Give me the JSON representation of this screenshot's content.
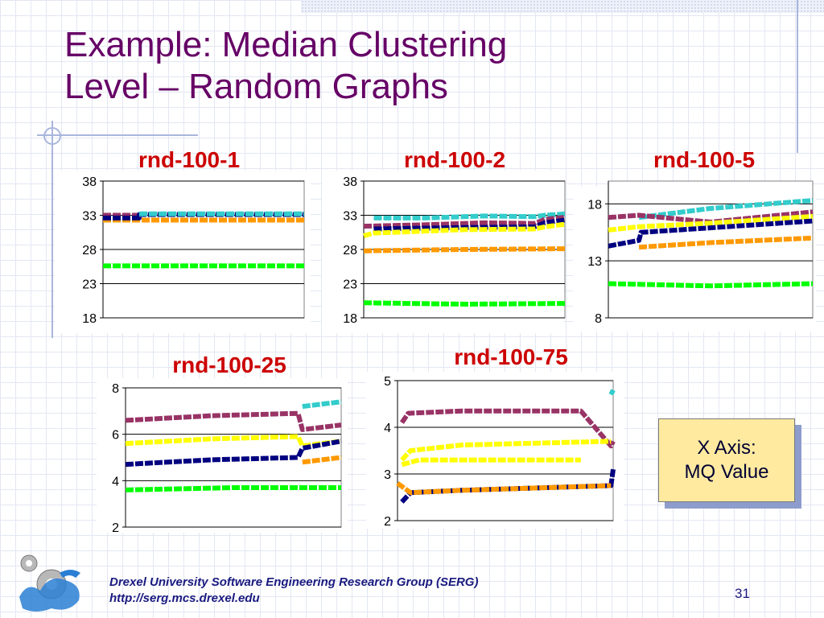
{
  "slide": {
    "title_line1": "Example:  Median Clustering",
    "title_line2": "Level – Random Graphs",
    "callout_line1": "X Axis:",
    "callout_line2": "MQ Value",
    "footer_line1": "Drexel University Software Engineering Research Group (SERG)",
    "footer_line2": "http://serg.mcs.drexel.edu",
    "page_number": "31",
    "colors": {
      "title": "#660066",
      "chart_title": "#cc0000",
      "footer": "#1a1a80",
      "callout_bg": "#ffeaa0",
      "callout_shadow": "#8e9ccc"
    }
  },
  "chart_data": [
    {
      "type": "line",
      "title": "rnd-100-1",
      "ylim": [
        18,
        38
      ],
      "yticks": [
        18,
        23,
        28,
        33,
        38
      ],
      "grid": true,
      "series": [
        {
          "color": "#ff9900",
          "points": [
            [
              0,
              32.3
            ],
            [
              1,
              32.3
            ]
          ]
        },
        {
          "color": "#993366",
          "points": [
            [
              0,
              33.0
            ],
            [
              0.18,
              33.0
            ]
          ]
        },
        {
          "color": "#000080",
          "points": [
            [
              0,
              32.6
            ],
            [
              0.18,
              32.6
            ],
            [
              0.18,
              33.1
            ],
            [
              1,
              33.1
            ]
          ]
        },
        {
          "color": "#33cccc",
          "points": [
            [
              0.18,
              33.2
            ],
            [
              1,
              33.2
            ]
          ]
        },
        {
          "color": "#00ff00",
          "points": [
            [
              0,
              25.6
            ],
            [
              1,
              25.6
            ]
          ]
        }
      ]
    },
    {
      "type": "line",
      "title": "rnd-100-2",
      "ylim": [
        18,
        38
      ],
      "yticks": [
        18,
        23,
        28,
        33,
        38
      ],
      "grid": true,
      "series": [
        {
          "color": "#33cccc",
          "points": [
            [
              0.05,
              32.6
            ],
            [
              0.3,
              32.6
            ],
            [
              0.6,
              32.9
            ],
            [
              0.85,
              32.8
            ],
            [
              0.9,
              33.0
            ],
            [
              1,
              33.2
            ]
          ]
        },
        {
          "color": "#993366",
          "points": [
            [
              0,
              31.4
            ],
            [
              0.3,
              31.6
            ],
            [
              0.6,
              31.9
            ],
            [
              0.85,
              31.8
            ],
            [
              0.9,
              32.4
            ],
            [
              1,
              32.7
            ]
          ]
        },
        {
          "color": "#000080",
          "points": [
            [
              0.05,
              31.0
            ],
            [
              0.5,
              31.2
            ],
            [
              0.85,
              31.3
            ],
            [
              0.9,
              31.9
            ],
            [
              1,
              32.3
            ]
          ]
        },
        {
          "color": "#ffff00",
          "points": [
            [
              0,
              30.0
            ],
            [
              0.05,
              30.4
            ],
            [
              0.5,
              30.9
            ],
            [
              0.85,
              31.0
            ],
            [
              0.9,
              31.3
            ],
            [
              1,
              31.7
            ]
          ]
        },
        {
          "color": "#ff9900",
          "points": [
            [
              0,
              27.8
            ],
            [
              0.5,
              28.0
            ],
            [
              1,
              28.1
            ]
          ]
        },
        {
          "color": "#00ff00",
          "points": [
            [
              0,
              20.2
            ],
            [
              0.5,
              20.0
            ],
            [
              1,
              20.1
            ]
          ]
        }
      ]
    },
    {
      "type": "line",
      "title": "rnd-100-5",
      "ylim": [
        8,
        20
      ],
      "yticks": [
        8,
        13,
        18
      ],
      "grid": true,
      "series": [
        {
          "color": "#33cccc",
          "points": [
            [
              0.15,
              16.8
            ],
            [
              0.5,
              17.6
            ],
            [
              1,
              18.3
            ]
          ]
        },
        {
          "color": "#993366",
          "points": [
            [
              0,
              16.8
            ],
            [
              0.15,
              17.0
            ],
            [
              0.5,
              16.4
            ],
            [
              1,
              17.3
            ]
          ]
        },
        {
          "color": "#ffff00",
          "points": [
            [
              0,
              15.7
            ],
            [
              0.15,
              16.0
            ],
            [
              0.5,
              16.3
            ],
            [
              1,
              16.9
            ]
          ]
        },
        {
          "color": "#000080",
          "points": [
            [
              0,
              14.3
            ],
            [
              0.15,
              14.8
            ],
            [
              0.16,
              15.5
            ],
            [
              0.5,
              15.9
            ],
            [
              1,
              16.5
            ]
          ]
        },
        {
          "color": "#ff9900",
          "points": [
            [
              0.15,
              14.2
            ],
            [
              0.5,
              14.6
            ],
            [
              1,
              15.0
            ]
          ]
        },
        {
          "color": "#00ff00",
          "points": [
            [
              0,
              11.0
            ],
            [
              0.5,
              10.8
            ],
            [
              1,
              11.0
            ]
          ]
        }
      ]
    },
    {
      "type": "line",
      "title": "rnd-100-25",
      "ylim": [
        2,
        8
      ],
      "yticks": [
        2,
        4,
        6,
        8
      ],
      "grid": true,
      "series": [
        {
          "color": "#33cccc",
          "points": [
            [
              0.82,
              7.2
            ],
            [
              1,
              7.4
            ]
          ]
        },
        {
          "color": "#993366",
          "points": [
            [
              0,
              6.6
            ],
            [
              0.4,
              6.8
            ],
            [
              0.8,
              6.9
            ],
            [
              0.82,
              6.2
            ],
            [
              1,
              6.4
            ]
          ]
        },
        {
          "color": "#ffff00",
          "points": [
            [
              0,
              5.6
            ],
            [
              0.4,
              5.8
            ],
            [
              0.8,
              5.9
            ],
            [
              0.82,
              5.5
            ],
            [
              1,
              5.7
            ]
          ]
        },
        {
          "color": "#000080",
          "points": [
            [
              0,
              4.7
            ],
            [
              0.4,
              4.9
            ],
            [
              0.8,
              5.0
            ],
            [
              0.82,
              5.4
            ],
            [
              1,
              5.7
            ]
          ]
        },
        {
          "color": "#ff9900",
          "points": [
            [
              0.82,
              4.8
            ],
            [
              1,
              5.0
            ]
          ]
        },
        {
          "color": "#00ff00",
          "points": [
            [
              0,
              3.6
            ],
            [
              0.5,
              3.7
            ],
            [
              1,
              3.7
            ]
          ]
        }
      ]
    },
    {
      "type": "line",
      "title": "rnd-100-75",
      "ylim": [
        2,
        5
      ],
      "yticks": [
        2,
        3,
        4,
        5
      ],
      "grid": true,
      "series": [
        {
          "color": "#33cccc",
          "points": [
            [
              0.99,
              4.7
            ],
            [
              1,
              4.8
            ]
          ]
        },
        {
          "color": "#993366",
          "points": [
            [
              0.02,
              4.1
            ],
            [
              0.05,
              4.3
            ],
            [
              0.3,
              4.35
            ],
            [
              0.85,
              4.35
            ],
            [
              0.99,
              3.6
            ],
            [
              1,
              3.7
            ]
          ]
        },
        {
          "color": "#ffff00",
          "points": [
            [
              0.02,
              3.3
            ],
            [
              0.06,
              3.5
            ],
            [
              0.3,
              3.62
            ],
            [
              0.99,
              3.7
            ]
          ]
        },
        {
          "color": "#ffff00",
          "points": [
            [
              0.02,
              3.2
            ],
            [
              0.1,
              3.3
            ],
            [
              0.85,
              3.3
            ]
          ]
        },
        {
          "color": "#000080",
          "points": [
            [
              0.02,
              2.4
            ],
            [
              0.06,
              2.6
            ],
            [
              0.3,
              2.65
            ],
            [
              0.99,
              2.75
            ],
            [
              1,
              3.1
            ]
          ]
        },
        {
          "color": "#ff9900",
          "points": [
            [
              0,
              2.8
            ],
            [
              0.06,
              2.6
            ],
            [
              0.3,
              2.65
            ],
            [
              0.99,
              2.75
            ]
          ]
        }
      ]
    }
  ]
}
